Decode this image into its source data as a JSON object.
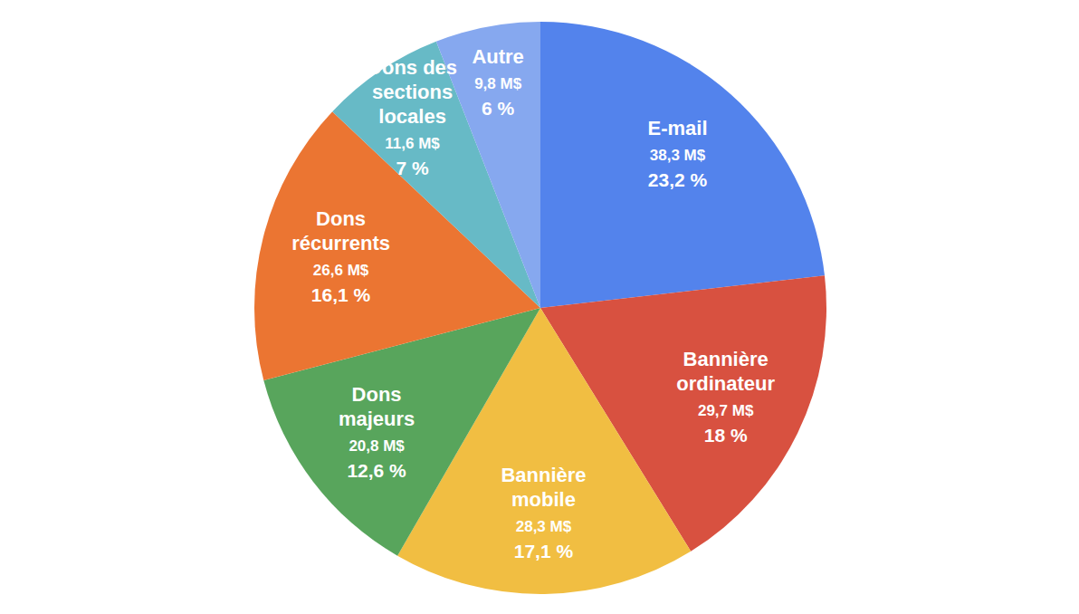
{
  "chart_data": {
    "type": "pie",
    "categories": [
      "E-mail",
      "Bannière ordinateur",
      "Bannière mobile",
      "Dons majeurs",
      "Dons récurrents",
      "Dons des sections locales",
      "Autre"
    ],
    "values": [
      38.3,
      29.7,
      28.3,
      20.8,
      26.6,
      11.6,
      9.8
    ],
    "value_labels": [
      "38,3 M$",
      "29,7 M$",
      "28,3 M$",
      "20,8 M$",
      "26,6 M$",
      "11,6 M$",
      "9,8 M$"
    ],
    "percentages": [
      23.2,
      18,
      17.1,
      12.6,
      16.1,
      7,
      6
    ],
    "percentage_labels": [
      "23,2 %",
      "18 %",
      "17,1 %",
      "12,6 %",
      "16,1 %",
      "7 %",
      "6 %"
    ],
    "colors": [
      "#5383ec",
      "#d85140",
      "#f1be42",
      "#58a55c",
      "#eb7532",
      "#67bac6",
      "#86a8ef"
    ],
    "data_labels": true
  }
}
